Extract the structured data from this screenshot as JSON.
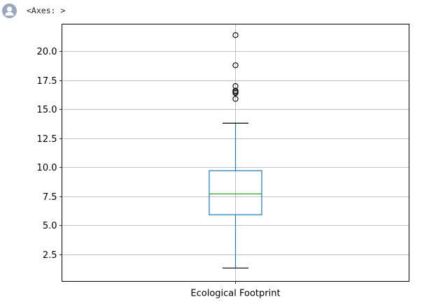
{
  "output": {
    "label": "<Axes: >",
    "avatar_icon": "user-avatar-icon"
  },
  "chart_data": {
    "type": "box",
    "xlabel": "",
    "ylabel": "",
    "title": "",
    "categories": [
      "Ecological Footprint"
    ],
    "ylim": [
      0.15,
      22.35
    ],
    "yticks": [
      "2.5",
      "5.0",
      "7.5",
      "10.0",
      "12.5",
      "15.0",
      "17.5",
      "20.0"
    ],
    "grid": true,
    "legend": "none",
    "box": {
      "whisker_low": 1.3,
      "q1": 5.9,
      "median": 7.7,
      "q3": 9.7,
      "whisker_high": 13.8,
      "outliers": [
        15.9,
        16.4,
        16.5,
        16.6,
        17.0,
        18.8,
        21.4
      ]
    },
    "colors": {
      "box": "#1f77b4",
      "median": "#2ca02c",
      "cap": "#000000",
      "grid": "#b0b0b0"
    }
  }
}
